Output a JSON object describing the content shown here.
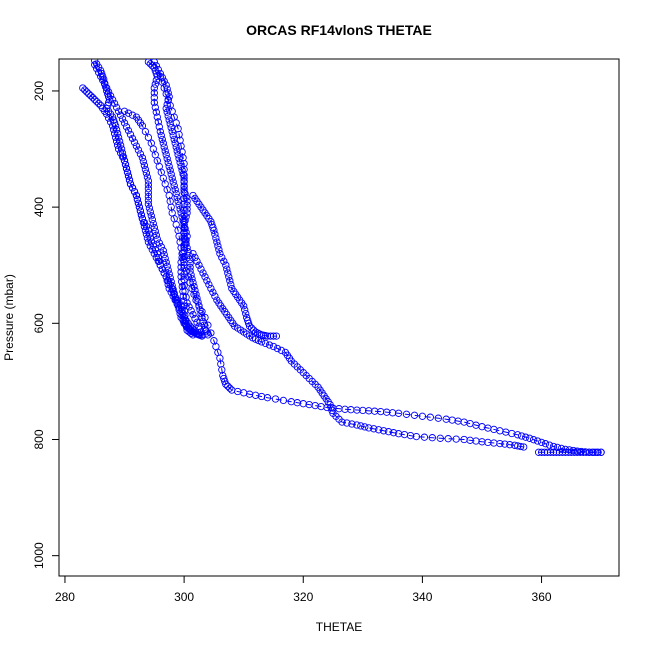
{
  "chart_data": {
    "type": "line",
    "title": "ORCAS RF14vlonS THETAE",
    "xlabel": "THETAE",
    "ylabel": "Pressure (mbar)",
    "xlim": [
      279,
      373
    ],
    "ylim": [
      1035,
      145
    ],
    "y_reversed": true,
    "x_ticks": [
      280,
      300,
      320,
      340,
      360
    ],
    "y_ticks": [
      200,
      400,
      600,
      800,
      1000
    ],
    "grid": false,
    "legend": "none",
    "marker": "open-circle",
    "color": "#0000ff",
    "series": [
      {
        "values": [
          [
            283.0,
            195
          ],
          [
            284.0,
            205
          ],
          [
            285.0,
            215
          ],
          [
            286.0,
            225
          ],
          [
            287.0,
            240
          ],
          [
            288.0,
            260
          ],
          [
            288.5,
            280
          ],
          [
            289.0,
            300
          ],
          [
            290.0,
            320
          ],
          [
            290.5,
            340
          ],
          [
            291.0,
            360
          ],
          [
            292.0,
            380
          ],
          [
            292.5,
            400
          ],
          [
            293.0,
            420
          ],
          [
            294.0,
            440
          ],
          [
            294.5,
            460
          ],
          [
            295.5,
            480
          ],
          [
            296.0,
            500
          ],
          [
            297.0,
            520
          ],
          [
            297.5,
            540
          ],
          [
            298.5,
            560
          ],
          [
            299.5,
            580
          ],
          [
            300.0,
            600
          ],
          [
            301.0,
            612
          ],
          [
            302.0,
            618
          ],
          [
            303.0,
            622
          ]
        ]
      },
      {
        "values": [
          [
            285.0,
            148
          ],
          [
            286.0,
            165
          ],
          [
            286.5,
            180
          ],
          [
            287.0,
            200
          ],
          [
            287.5,
            215
          ],
          [
            287.0,
            230
          ],
          [
            288.0,
            245
          ],
          [
            288.5,
            260
          ],
          [
            289.0,
            280
          ],
          [
            289.5,
            300
          ],
          [
            290.0,
            320
          ],
          [
            290.5,
            340
          ],
          [
            291.0,
            360
          ],
          [
            292.0,
            380
          ],
          [
            292.5,
            400
          ],
          [
            293.0,
            420
          ],
          [
            293.5,
            440
          ],
          [
            294.0,
            460
          ],
          [
            295.0,
            480
          ],
          [
            296.0,
            500
          ],
          [
            297.0,
            520
          ],
          [
            298.0,
            540
          ],
          [
            298.5,
            555
          ],
          [
            299.0,
            570
          ],
          [
            299.5,
            590
          ],
          [
            300.5,
            605
          ],
          [
            301.5,
            615
          ],
          [
            302.5,
            620
          ]
        ]
      },
      {
        "values": [
          [
            285.0,
            155
          ],
          [
            286.0,
            175
          ],
          [
            287.0,
            195
          ],
          [
            288.0,
            215
          ],
          [
            289.0,
            235
          ],
          [
            290.0,
            255
          ],
          [
            291.0,
            275
          ],
          [
            292.0,
            295
          ],
          [
            293.0,
            315
          ],
          [
            293.5,
            335
          ],
          [
            294.0,
            355
          ],
          [
            294.0,
            375
          ],
          [
            294.0,
            395
          ],
          [
            294.5,
            415
          ],
          [
            295.0,
            435
          ],
          [
            295.5,
            455
          ],
          [
            296.5,
            475
          ],
          [
            297.0,
            495
          ],
          [
            297.5,
            515
          ],
          [
            298.0,
            535
          ],
          [
            298.5,
            555
          ],
          [
            299.5,
            570
          ],
          [
            300.0,
            590
          ],
          [
            301.0,
            605
          ],
          [
            302.0,
            615
          ]
        ]
      },
      {
        "values": [
          [
            294.0,
            150
          ],
          [
            295.0,
            160
          ],
          [
            295.5,
            175
          ],
          [
            295.0,
            195
          ],
          [
            295.0,
            220
          ],
          [
            295.5,
            245
          ],
          [
            296.0,
            270
          ],
          [
            296.5,
            290
          ],
          [
            297.0,
            310
          ],
          [
            297.5,
            330
          ],
          [
            298.0,
            350
          ],
          [
            298.5,
            370
          ],
          [
            299.0,
            390
          ],
          [
            299.5,
            410
          ],
          [
            300.0,
            430
          ],
          [
            300.5,
            450
          ],
          [
            300.0,
            470
          ],
          [
            299.5,
            495
          ],
          [
            299.5,
            520
          ],
          [
            299.8,
            545
          ],
          [
            300.0,
            570
          ],
          [
            300.2,
            595
          ],
          [
            300.5,
            612
          ],
          [
            301.5,
            620
          ]
        ]
      },
      {
        "values": [
          [
            295.0,
            150
          ],
          [
            296.0,
            170
          ],
          [
            297.0,
            190
          ],
          [
            297.5,
            210
          ],
          [
            297.0,
            230
          ],
          [
            297.5,
            250
          ],
          [
            298.0,
            270
          ],
          [
            298.5,
            290
          ],
          [
            299.0,
            310
          ],
          [
            299.5,
            330
          ],
          [
            300.0,
            350
          ],
          [
            300.0,
            370
          ],
          [
            300.5,
            390
          ],
          [
            300.5,
            410
          ],
          [
            300.0,
            430
          ],
          [
            300.0,
            450
          ],
          [
            300.5,
            470
          ],
          [
            301.0,
            490
          ],
          [
            301.0,
            510
          ],
          [
            301.5,
            530
          ],
          [
            302.0,
            550
          ],
          [
            302.5,
            570
          ],
          [
            303.0,
            590
          ],
          [
            303.5,
            610
          ],
          [
            304.0,
            620
          ]
        ]
      },
      {
        "values": [
          [
            301.5,
            380
          ],
          [
            302.5,
            395
          ],
          [
            303.5,
            410
          ],
          [
            304.5,
            425
          ],
          [
            305.0,
            440
          ],
          [
            305.5,
            460
          ],
          [
            306.0,
            480
          ],
          [
            307.0,
            500
          ],
          [
            307.5,
            520
          ],
          [
            308.0,
            540
          ],
          [
            309.0,
            555
          ],
          [
            310.0,
            570
          ],
          [
            310.5,
            590
          ],
          [
            311.0,
            605
          ],
          [
            312.0,
            615
          ],
          [
            313.0,
            620
          ],
          [
            314.0,
            622
          ],
          [
            315.5,
            622
          ]
        ]
      },
      {
        "values": [
          [
            301.5,
            480
          ],
          [
            302.5,
            500
          ],
          [
            303.5,
            520
          ],
          [
            304.5,
            540
          ],
          [
            305.5,
            560
          ],
          [
            306.5,
            575
          ],
          [
            307.5,
            590
          ],
          [
            308.5,
            605
          ],
          [
            310.0,
            615
          ],
          [
            311.5,
            625
          ],
          [
            313.0,
            632
          ],
          [
            315.0,
            640
          ],
          [
            317.0,
            650
          ],
          [
            318.0,
            665
          ],
          [
            319.5,
            680
          ],
          [
            321.0,
            695
          ],
          [
            322.5,
            710
          ],
          [
            323.5,
            725
          ],
          [
            324.5,
            740
          ],
          [
            325.0,
            755
          ],
          [
            326.5,
            770
          ],
          [
            329.0,
            775
          ],
          [
            331.0,
            780
          ],
          [
            333.5,
            785
          ],
          [
            336.0,
            790
          ],
          [
            339.0,
            795
          ],
          [
            343.0,
            798
          ],
          [
            347.0,
            800
          ],
          [
            350.0,
            804
          ],
          [
            353.0,
            807
          ],
          [
            355.5,
            810
          ],
          [
            357.0,
            813
          ]
        ]
      },
      {
        "values": [
          [
            296.0,
            175
          ],
          [
            297.0,
            205
          ],
          [
            298.0,
            235
          ],
          [
            299.0,
            265
          ],
          [
            299.5,
            295
          ],
          [
            300.0,
            325
          ],
          [
            300.0,
            355
          ],
          [
            300.0,
            385
          ],
          [
            300.0,
            415
          ],
          [
            300.0,
            445
          ],
          [
            300.0,
            475
          ],
          [
            300.0,
            505
          ],
          [
            300.0,
            535
          ],
          [
            300.5,
            565
          ],
          [
            301.5,
            585
          ],
          [
            302.5,
            605
          ],
          [
            303.0,
            620
          ]
        ]
      },
      {
        "values": [
          [
            290.0,
            235
          ],
          [
            292.0,
            245
          ],
          [
            293.0,
            260
          ],
          [
            294.5,
            290
          ],
          [
            295.5,
            320
          ],
          [
            296.5,
            350
          ],
          [
            297.5,
            380
          ],
          [
            298.0,
            410
          ],
          [
            299.0,
            440
          ],
          [
            299.5,
            470
          ],
          [
            300.0,
            500
          ],
          [
            301.0,
            530
          ],
          [
            302.0,
            560
          ],
          [
            303.5,
            590
          ],
          [
            305.0,
            630
          ],
          [
            306.0,
            660
          ],
          [
            306.5,
            690
          ],
          [
            307.0,
            705
          ],
          [
            308.0,
            715
          ],
          [
            311.0,
            722
          ],
          [
            314.0,
            728
          ],
          [
            318.0,
            735
          ],
          [
            321.0,
            740
          ],
          [
            324.0,
            745
          ],
          [
            327.0,
            748
          ],
          [
            330.0,
            750
          ],
          [
            333.0,
            752
          ],
          [
            336.0,
            755
          ],
          [
            340.0,
            760
          ],
          [
            344.0,
            765
          ],
          [
            347.0,
            770
          ],
          [
            350.0,
            778
          ],
          [
            353.0,
            785
          ],
          [
            356.0,
            792
          ],
          [
            358.0,
            798
          ],
          [
            360.0,
            805
          ],
          [
            362.0,
            812
          ],
          [
            364.0,
            817
          ],
          [
            366.0,
            820
          ],
          [
            368.0,
            822
          ],
          [
            370.0,
            822
          ]
        ]
      },
      {
        "values": [
          [
            359.5,
            822
          ],
          [
            361.0,
            822
          ],
          [
            362.5,
            822
          ],
          [
            364.0,
            822
          ],
          [
            365.5,
            822
          ],
          [
            367.0,
            822
          ],
          [
            368.5,
            822
          ],
          [
            370.0,
            822
          ]
        ]
      }
    ]
  }
}
